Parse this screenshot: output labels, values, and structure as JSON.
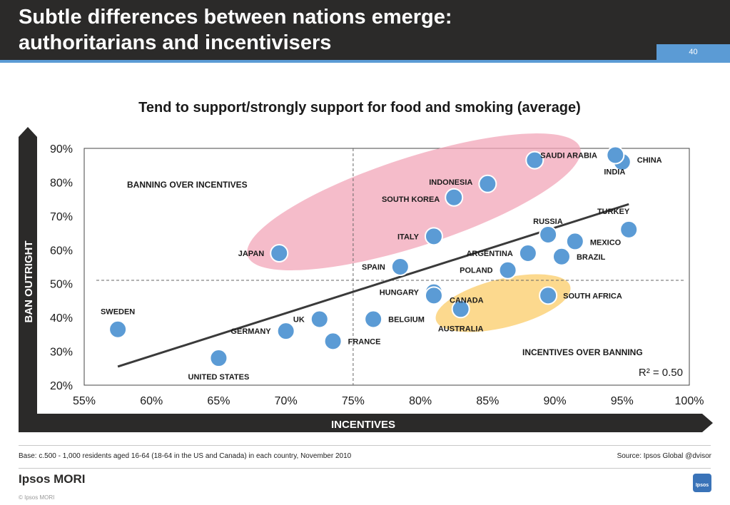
{
  "header": {
    "title": "Subtle differences between nations emerge:\nauthoritarians and incentivisers",
    "page_number": "40"
  },
  "chart_data": {
    "type": "scatter",
    "title": "Tend to support/strongly support for food and smoking (average)",
    "xlabel": "INCENTIVES",
    "ylabel": "BAN OUTRIGHT",
    "xlim": [
      55,
      100
    ],
    "ylim": [
      20,
      90
    ],
    "x_ticks": [
      "55%",
      "60%",
      "65%",
      "70%",
      "75%",
      "80%",
      "85%",
      "90%",
      "95%",
      "100%"
    ],
    "y_ticks": [
      "20%",
      "30%",
      "40%",
      "50%",
      "60%",
      "70%",
      "80%",
      "90%"
    ],
    "grid": false,
    "quadrant_lines": {
      "x": 75,
      "y": 51
    },
    "quadrant_labels": {
      "top_left": "BANNING OVER INCENTIVES",
      "bottom_right": "INCENTIVES OVER BANNING"
    },
    "r_squared": "R² = 0.50",
    "trendline": {
      "from": [
        57.5,
        25.5
      ],
      "to": [
        95.5,
        73.5
      ]
    },
    "points": [
      {
        "label": "SAUDI ARABIA",
        "x": 88.5,
        "y": 86.5
      },
      {
        "label": "CHINA",
        "x": 95,
        "y": 86
      },
      {
        "label": "INDIA",
        "x": 94.5,
        "y": 88
      },
      {
        "label": "INDONESIA",
        "x": 85,
        "y": 79.5
      },
      {
        "label": "SOUTH KOREA",
        "x": 82.5,
        "y": 75.5
      },
      {
        "label": "TURKEY",
        "x": 95.5,
        "y": 66
      },
      {
        "label": "RUSSIA",
        "x": 89.5,
        "y": 64.5
      },
      {
        "label": "MEXICO",
        "x": 91.5,
        "y": 62.5
      },
      {
        "label": "ITALY",
        "x": 81,
        "y": 64
      },
      {
        "label": "JAPAN",
        "x": 69.5,
        "y": 59
      },
      {
        "label": "ARGENTINA",
        "x": 88,
        "y": 59
      },
      {
        "label": "BRAZIL",
        "x": 90.5,
        "y": 58
      },
      {
        "label": "SPAIN",
        "x": 78.5,
        "y": 55
      },
      {
        "label": "POLAND",
        "x": 86.5,
        "y": 54
      },
      {
        "label": "HUNGARY",
        "x": 81,
        "y": 47.5
      },
      {
        "label": "SOUTH AFRICA",
        "x": 89.5,
        "y": 46.5
      },
      {
        "label": "CANADA",
        "x": 81,
        "y": 46.5
      },
      {
        "label": "AUSTRALIA",
        "x": 83,
        "y": 42.5
      },
      {
        "label": "BELGIUM",
        "x": 76.5,
        "y": 39.5
      },
      {
        "label": "UK",
        "x": 72.5,
        "y": 39.5
      },
      {
        "label": "SWEDEN",
        "x": 57.5,
        "y": 36.5
      },
      {
        "label": "GERMANY",
        "x": 70,
        "y": 36
      },
      {
        "label": "FRANCE",
        "x": 73.5,
        "y": 33
      },
      {
        "label": "UNITED STATES",
        "x": 65,
        "y": 28
      }
    ],
    "ellipses": [
      {
        "name": "authoritarians",
        "color": "#f2a6b8"
      },
      {
        "name": "incentivisers",
        "color": "#fbd27a"
      }
    ],
    "colors": {
      "point": "#5b9bd5",
      "axis_bar": "#2b2a29",
      "trend": "#3a3a3a"
    }
  },
  "footer": {
    "base": "Base: c.500 - 1,000 residents aged 16-64 (18-64 in the US and Canada) in each country, November 2010",
    "source": "Source: Ipsos Global @dvisor",
    "brand": "Ipsos MORI",
    "copyright": "© Ipsos MORI",
    "logo_text": "Ipsos"
  }
}
